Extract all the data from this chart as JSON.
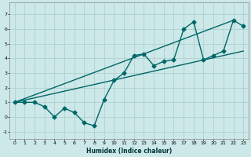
{
  "xlabel": "Humidex (Indice chaleur)",
  "ylabel": "",
  "xlim": [
    -0.5,
    23.5
  ],
  "ylim": [
    -1.5,
    7.8
  ],
  "yticks": [
    -1,
    0,
    1,
    2,
    3,
    4,
    5,
    6,
    7
  ],
  "xticks": [
    0,
    1,
    2,
    3,
    4,
    5,
    6,
    7,
    8,
    9,
    10,
    11,
    12,
    13,
    14,
    15,
    16,
    17,
    18,
    19,
    20,
    21,
    22,
    23
  ],
  "background_color": "#cce8e8",
  "grid_color": "#aacccc",
  "line_color": "#006666",
  "series": [
    {
      "x": [
        0,
        1,
        2,
        3,
        4,
        5,
        6,
        7,
        8,
        9,
        10,
        11,
        12,
        13,
        14,
        15,
        16,
        17,
        18,
        19,
        20,
        21,
        22,
        23
      ],
      "y": [
        1,
        1,
        1,
        0.7,
        0,
        0.6,
        0.3,
        -0.4,
        -0.6,
        1.2,
        2.5,
        3.0,
        4.2,
        4.3,
        3.5,
        3.8,
        3.9,
        6.0,
        6.5,
        3.9,
        4.2,
        4.5,
        6.6,
        6.2
      ],
      "marker": "D",
      "markersize": 2.5,
      "linewidth": 1.0
    },
    {
      "x": [
        0,
        22
      ],
      "y": [
        1,
        6.6
      ],
      "marker": null,
      "markersize": 0,
      "linewidth": 1.0
    },
    {
      "x": [
        0,
        23
      ],
      "y": [
        1,
        4.5
      ],
      "marker": null,
      "markersize": 0,
      "linewidth": 1.0
    }
  ]
}
